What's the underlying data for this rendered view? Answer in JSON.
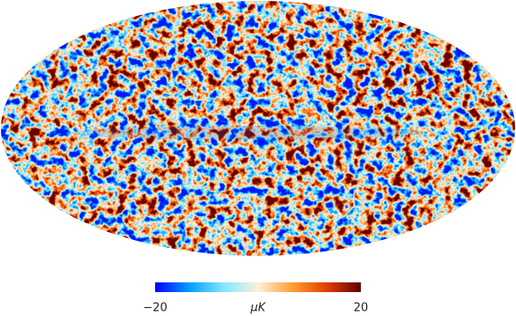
{
  "colorbar": {
    "label": "μK",
    "lim": [
      -20,
      20
    ],
    "ticks": [
      {
        "value": -20,
        "label": "−20"
      },
      20
    ],
    "colors": [
      "#0000ff",
      "#00a0ff",
      "#80e8ff",
      "#fff0dc",
      "#ffa030",
      "#e04000",
      "#600000"
    ]
  }
}
